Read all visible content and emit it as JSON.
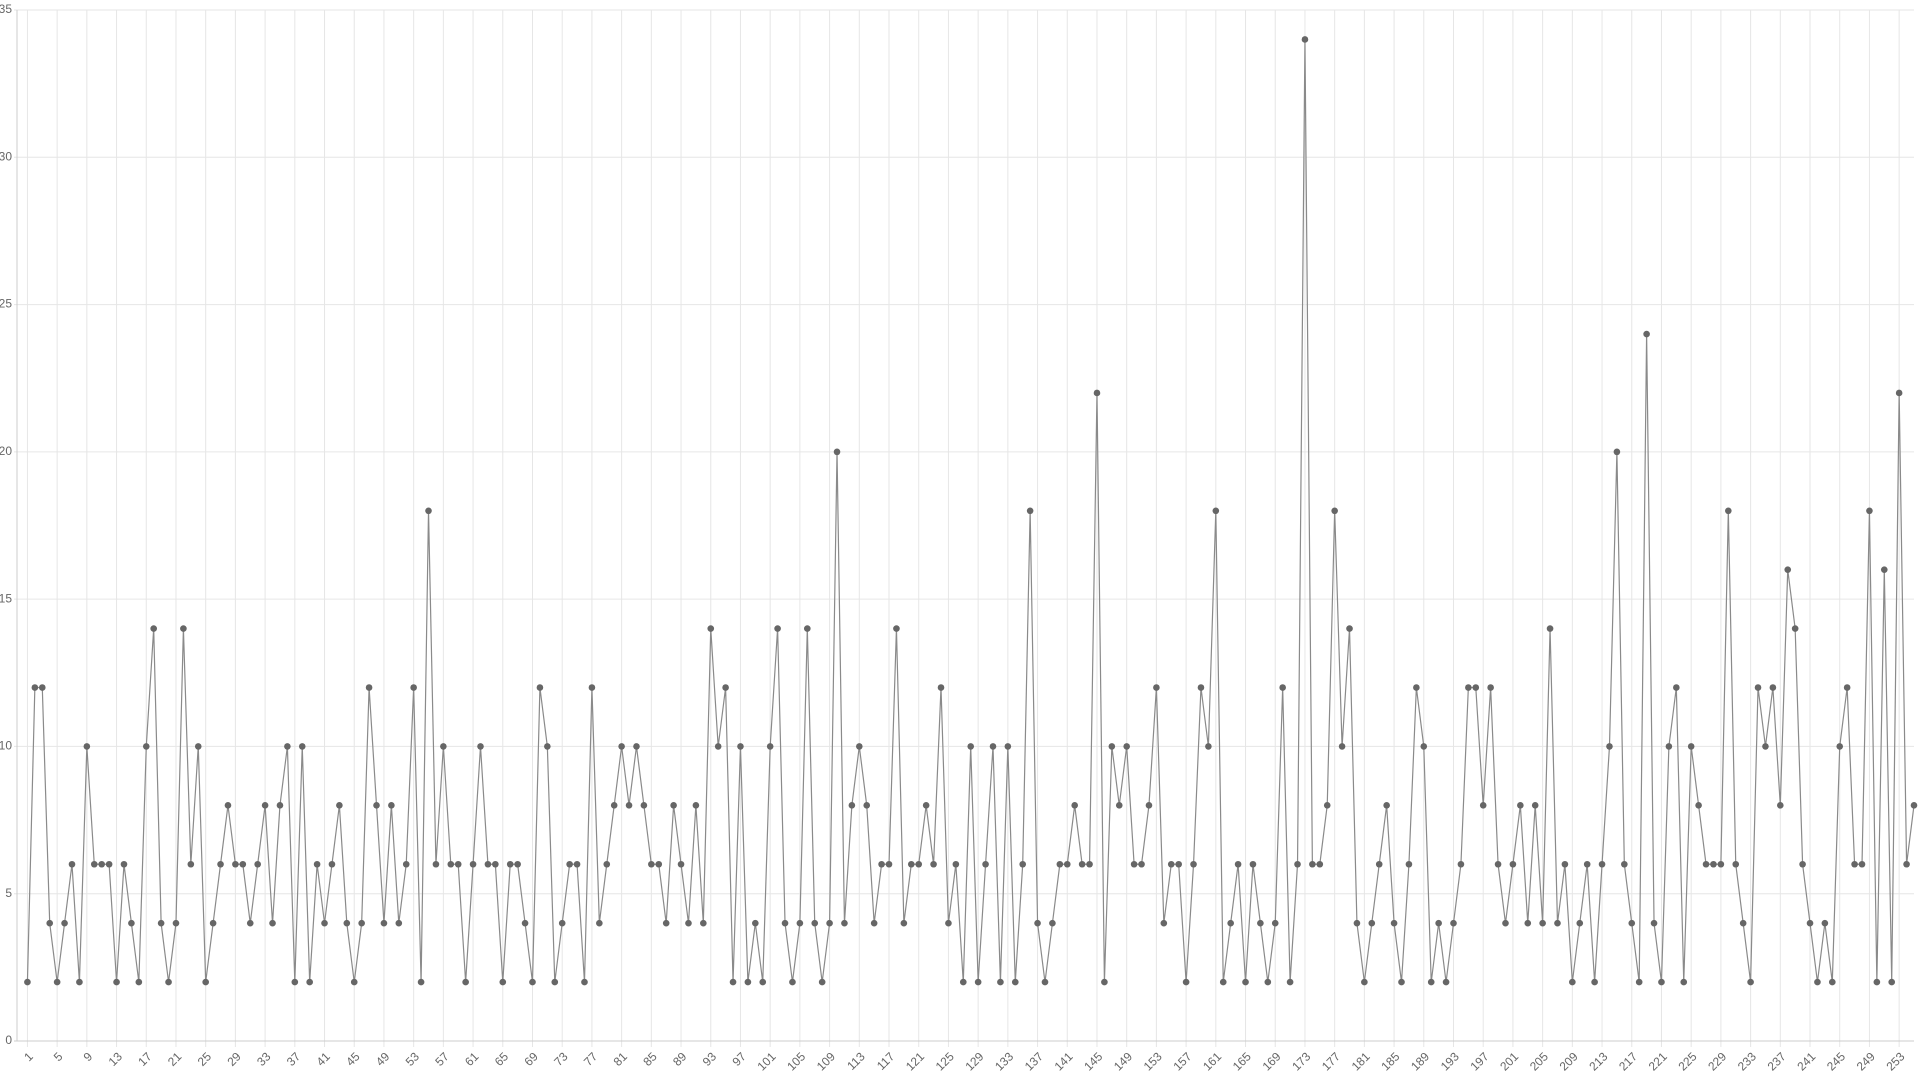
{
  "chart_data": {
    "type": "line",
    "x": [
      1,
      2,
      3,
      4,
      5,
      6,
      7,
      8,
      9,
      10,
      11,
      12,
      13,
      14,
      15,
      16,
      17,
      18,
      19,
      20,
      21,
      22,
      23,
      24,
      25,
      26,
      27,
      28,
      29,
      30,
      31,
      32,
      33,
      34,
      35,
      36,
      37,
      38,
      39,
      40,
      41,
      42,
      43,
      44,
      45,
      46,
      47,
      48,
      49,
      50,
      51,
      52,
      53,
      54,
      55,
      56,
      57,
      58,
      59,
      60,
      61,
      62,
      63,
      64,
      65,
      66,
      67,
      68,
      69,
      70,
      71,
      72,
      73,
      74,
      75,
      76,
      77,
      78,
      79,
      80,
      81,
      82,
      83,
      84,
      85,
      86,
      87,
      88,
      89,
      90,
      91,
      92,
      93,
      94,
      95,
      96,
      97,
      98,
      99,
      100,
      101,
      102,
      103,
      104,
      105,
      106,
      107,
      108,
      109,
      110,
      111,
      112,
      113,
      114,
      115,
      116,
      117,
      118,
      119,
      120,
      121,
      122,
      123,
      124,
      125,
      126,
      127,
      128,
      129,
      130,
      131,
      132,
      133,
      134,
      135,
      136,
      137,
      138,
      139,
      140,
      141,
      142,
      143,
      144,
      145,
      146,
      147,
      148,
      149,
      150,
      151,
      152,
      153,
      154,
      155,
      156,
      157,
      158,
      159,
      160,
      161,
      162,
      163,
      164,
      165,
      166,
      167,
      168,
      169,
      170,
      171,
      172,
      173,
      174,
      175,
      176,
      177,
      178,
      179,
      180,
      181,
      182,
      183,
      184,
      185,
      186,
      187,
      188,
      189,
      190,
      191,
      192,
      193,
      194,
      195,
      196,
      197,
      198,
      199,
      200,
      201,
      202,
      203,
      204,
      205,
      206,
      207,
      208,
      209,
      210,
      211,
      212,
      213,
      214,
      215,
      216,
      217,
      218,
      219,
      220,
      221,
      222,
      223,
      224,
      225,
      226,
      227,
      228,
      229,
      230,
      231,
      232,
      233,
      234,
      235,
      236,
      237,
      238,
      239,
      240,
      241,
      242,
      243,
      244,
      245,
      246,
      247,
      248,
      249,
      250,
      251,
      252,
      253,
      254,
      255
    ],
    "series": [
      {
        "color": "#666666",
        "values": [
          2,
          12,
          12,
          4,
          2,
          4,
          6,
          2,
          10,
          6,
          6,
          6,
          2,
          6,
          4,
          2,
          10,
          14,
          4,
          2,
          4,
          14,
          6,
          10,
          2,
          4,
          6,
          8,
          6,
          6,
          4,
          6,
          8,
          4,
          8,
          10,
          2,
          10,
          2,
          6,
          4,
          6,
          8,
          4,
          2,
          4,
          12,
          8,
          4,
          8,
          4,
          6,
          12,
          2,
          18,
          6,
          10,
          6,
          6,
          2,
          6,
          10,
          6,
          6,
          2,
          6,
          6,
          4,
          2,
          12,
          10,
          2,
          4,
          6,
          6,
          2,
          12,
          4,
          6,
          8,
          10,
          8,
          10,
          8,
          6,
          6,
          4,
          8,
          6,
          4,
          8,
          4,
          14,
          10,
          12,
          2,
          10,
          2,
          4,
          2,
          10,
          14,
          4,
          2,
          4,
          14,
          4,
          2,
          4,
          20,
          4,
          8,
          10,
          8,
          4,
          6,
          6,
          14,
          4,
          6,
          6,
          8,
          6,
          12,
          4,
          6,
          2,
          10,
          2,
          6,
          10,
          2,
          10,
          2,
          6,
          18,
          4,
          2,
          4,
          6,
          6,
          8,
          6,
          6,
          22,
          2,
          10,
          8,
          10,
          6,
          6,
          8,
          12,
          4,
          6,
          6,
          2,
          6,
          12,
          10,
          18,
          2,
          4,
          6,
          2,
          6,
          4,
          2,
          4,
          12,
          2,
          6,
          34,
          6,
          6,
          8,
          18,
          10,
          14,
          4,
          2,
          4,
          6,
          8,
          4,
          2,
          6,
          12,
          10,
          2,
          4,
          2,
          4,
          6,
          12,
          12,
          8,
          12,
          6,
          4,
          6,
          8,
          4,
          8,
          4,
          14,
          4,
          6,
          2,
          4,
          6,
          2,
          6,
          10,
          20,
          6,
          4,
          2,
          24,
          4,
          2,
          10,
          12,
          2,
          10,
          8,
          6,
          6,
          6,
          18,
          6,
          4,
          2,
          12,
          10,
          12,
          8,
          16,
          14,
          6,
          4,
          2,
          4,
          2,
          10,
          12,
          6,
          6,
          18,
          2,
          16,
          2,
          22,
          6,
          8
        ]
      }
    ],
    "xlim": [
      0,
      255
    ],
    "xticks": [
      1,
      5,
      9,
      13,
      17,
      21,
      25,
      29,
      33,
      37,
      41,
      45,
      49,
      53,
      57,
      61,
      65,
      69,
      73,
      77,
      81,
      85,
      89,
      93,
      97,
      101,
      105,
      109,
      113,
      117,
      121,
      125,
      129,
      133,
      137,
      141,
      145,
      149,
      153,
      157,
      161,
      165,
      169,
      173,
      177,
      181,
      185,
      189,
      193,
      197,
      201,
      205,
      209,
      213,
      217,
      221,
      225,
      229,
      233,
      237,
      241,
      245,
      249,
      253
    ],
    "ylim": [
      0,
      35
    ],
    "yticks": [
      0,
      5,
      10,
      15,
      20,
      25,
      30,
      35
    ],
    "grid": true
  }
}
